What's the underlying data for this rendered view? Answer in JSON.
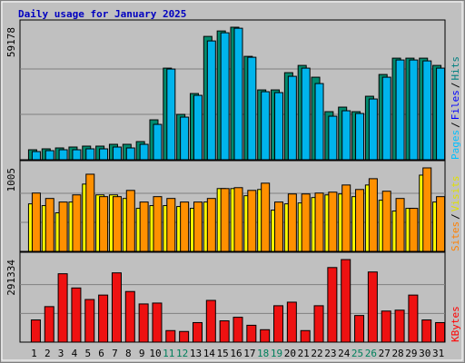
{
  "chart_data": [
    {
      "type": "bar",
      "title": "Daily usage for January 2025",
      "ylim": [
        0,
        59178
      ],
      "yticks": [
        59178
      ],
      "label_separator": "/",
      "ylabel_parts": [
        {
          "text": "Pages",
          "color": "#00c0ff"
        },
        {
          "text": "Files",
          "color": "#0000ff"
        },
        {
          "text": "Hits",
          "color": "#008080"
        }
      ],
      "series": [
        {
          "name": "Hits",
          "color": "#008a6e",
          "values": [
            4455,
            4860,
            5265,
            5670,
            6075,
            6075,
            6885,
            6885,
            8100,
            17820,
            40905,
            20250,
            29565,
            55080,
            57510,
            59178,
            46170,
            31185,
            31185,
            38880,
            42120,
            36855,
            21465,
            23490,
            21465,
            28350,
            38070,
            45360,
            45360,
            45360,
            42120
          ]
        },
        {
          "name": "Pages",
          "color": "#00b4ec",
          "values": [
            3645,
            4050,
            4455,
            4455,
            4860,
            4860,
            5670,
            5265,
            6885,
            15795,
            40500,
            19035,
            28755,
            53055,
            56700,
            58725,
            45765,
            30375,
            29970,
            37260,
            40905,
            34020,
            19440,
            21870,
            20655,
            27135,
            36855,
            44550,
            44550,
            44145,
            40905
          ]
        }
      ]
    },
    {
      "type": "bar",
      "ylim": [
        0,
        1005
      ],
      "yticks": [
        1005
      ],
      "label_separator": "/",
      "ylabel_parts": [
        {
          "text": "Sites",
          "color": "#ff8000"
        },
        {
          "text": "Visits",
          "color": "#e0e000"
        }
      ],
      "series": [
        {
          "name": "Visits",
          "color": "#ffff00",
          "values": [
            572,
            551,
            464,
            594,
            810,
            680,
            680,
            637,
            518,
            551,
            551,
            540,
            518,
            594,
            756,
            756,
            670,
            745,
            497,
            572,
            583,
            648,
            680,
            691,
            659,
            799,
            616,
            486,
            518,
            918,
            594
          ]
        },
        {
          "name": "Sites",
          "color": "#ff9000",
          "values": [
            702,
            637,
            594,
            680,
            929,
            659,
            659,
            734,
            594,
            659,
            637,
            594,
            594,
            637,
            756,
            767,
            734,
            821,
            594,
            691,
            691,
            702,
            713,
            799,
            745,
            875,
            724,
            637,
            518,
            1005,
            659
          ]
        }
      ]
    },
    {
      "type": "bar",
      "ylim": [
        0,
        291334
      ],
      "yticks": [
        291334
      ],
      "ylabel_parts": [
        {
          "text": "KBytes",
          "color": "#ff0000"
        }
      ],
      "categories": [
        "1",
        "2",
        "3",
        "4",
        "5",
        "6",
        "7",
        "8",
        "9",
        "10",
        "11",
        "12",
        "13",
        "14",
        "15",
        "16",
        "17",
        "18",
        "19",
        "20",
        "21",
        "22",
        "23",
        "24",
        "25",
        "26",
        "27",
        "28",
        "29",
        "30",
        "31"
      ],
      "highlight_indices": [
        10,
        11,
        17,
        18,
        24,
        25
      ],
      "highlight_color": "#00805c",
      "series": [
        {
          "name": "KBytes",
          "color": "#ee1111",
          "values": [
            78325,
            125320,
            241241,
            191113,
            150384,
            166049,
            244374,
            178581,
            134719,
            137852,
            40729,
            37596,
            68926,
            147251,
            75192,
            87724,
            59527,
            43862,
            128453,
            140985,
            40729,
            128453,
            263172,
            291334,
            93990,
            247507,
            109655,
            112788,
            166049,
            78325,
            68926
          ]
        }
      ]
    }
  ]
}
